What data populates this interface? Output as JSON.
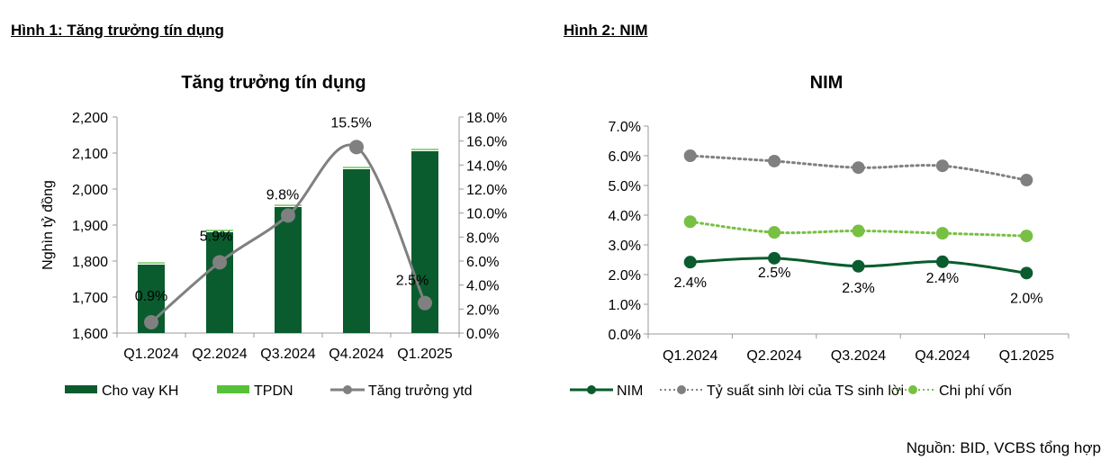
{
  "figure1": {
    "heading": "Hình 1: Tăng trưởng tín dụng"
  },
  "figure2": {
    "heading": "Hình 2: NIM"
  },
  "source_note": "Nguồn: BID, VCBS tổng hợp",
  "chart_data": [
    {
      "type": "bar",
      "title": "Tăng trưởng tín dụng",
      "ylabel": "Nghìn tỷ đồng",
      "categories": [
        "Q1.2024",
        "Q2.2024",
        "Q3.2024",
        "Q4.2024",
        "Q1.2025"
      ],
      "ylim": [
        1600,
        2200
      ],
      "yticks": [
        "1,600",
        "1,700",
        "1,800",
        "1,900",
        "2,000",
        "2,100",
        "2,200"
      ],
      "y2lim": [
        0,
        18
      ],
      "y2ticks": [
        "0.0%",
        "2.0%",
        "4.0%",
        "6.0%",
        "8.0%",
        "10.0%",
        "12.0%",
        "14.0%",
        "16.0%",
        "18.0%"
      ],
      "series": [
        {
          "name": "Cho vay KH",
          "kind": "stacked-bar",
          "axis": "left",
          "color": "#0a5c2e",
          "values": [
            1790,
            1880,
            1950,
            2055,
            2105
          ]
        },
        {
          "name": "TPDN",
          "kind": "stacked-bar",
          "axis": "left",
          "color": "#55c23a",
          "values": [
            7,
            7,
            7,
            7,
            7
          ]
        },
        {
          "name": "Tăng trưởng ytd",
          "kind": "line-smooth",
          "axis": "right",
          "color": "#808080",
          "values": [
            0.9,
            5.9,
            9.8,
            15.5,
            2.5
          ],
          "labels": [
            "0.9%",
            "5.9%",
            "9.8%",
            "15.5%",
            "2.5%"
          ]
        }
      ],
      "legend": "bottom"
    },
    {
      "type": "line",
      "title": "NIM",
      "categories": [
        "Q1.2024",
        "Q2.2024",
        "Q3.2024",
        "Q4.2024",
        "Q1.2025"
      ],
      "ylim": [
        0,
        7
      ],
      "yticks": [
        "0.0%",
        "1.0%",
        "2.0%",
        "3.0%",
        "4.0%",
        "5.0%",
        "6.0%",
        "7.0%"
      ],
      "series": [
        {
          "name": "NIM",
          "style": "solid",
          "color": "#0a5c2e",
          "values": [
            2.42,
            2.55,
            2.28,
            2.43,
            2.05
          ],
          "labels": [
            "2.4%",
            "2.5%",
            "2.3%",
            "2.4%",
            "2.0%"
          ]
        },
        {
          "name": "Tỷ suất sinh lời của TS sinh lời",
          "style": "dotted",
          "color": "#808080",
          "values": [
            6.0,
            5.82,
            5.6,
            5.66,
            5.18
          ]
        },
        {
          "name": "Chi phí vốn",
          "style": "dotted",
          "color": "#77c043",
          "values": [
            3.78,
            3.42,
            3.47,
            3.39,
            3.3
          ]
        }
      ],
      "legend": "bottom"
    }
  ]
}
